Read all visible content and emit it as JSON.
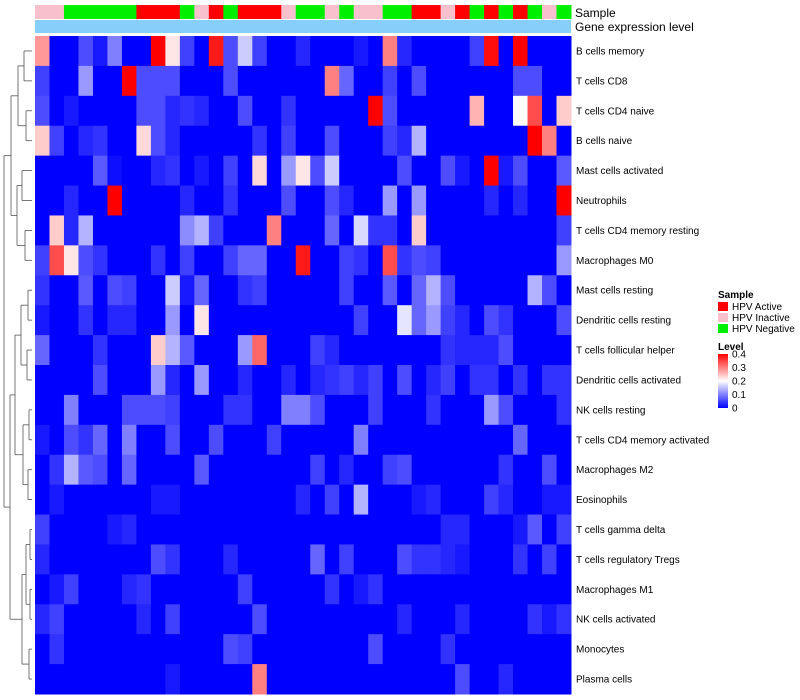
{
  "chart_data": {
    "type": "heatmap",
    "annotation_rows": [
      "Sample",
      "Gene expression level"
    ],
    "sample_groups": [
      "HPV Inactive",
      "HPV Inactive",
      "HPV Negative",
      "HPV Negative",
      "HPV Negative",
      "HPV Negative",
      "HPV Negative",
      "HPV Active",
      "HPV Active",
      "HPV Active",
      "HPV Negative",
      "HPV Inactive",
      "HPV Active",
      "HPV Negative",
      "HPV Active",
      "HPV Active",
      "HPV Active",
      "HPV Inactive",
      "HPV Negative",
      "HPV Negative",
      "HPV Inactive",
      "HPV Negative",
      "HPV Inactive",
      "HPV Inactive",
      "HPV Negative",
      "HPV Negative",
      "HPV Active",
      "HPV Active",
      "HPV Inactive",
      "HPV Active",
      "HPV Negative",
      "HPV Active",
      "HPV Negative",
      "HPV Active",
      "HPV Negative",
      "HPV Inactive",
      "HPV Negative"
    ],
    "rows": [
      "B cells memory",
      "T cells CD8",
      "T cells CD4 naive",
      "B cells naive",
      "Mast cells activated",
      "Neutrophils",
      "T cells CD4 memory resting",
      "Macrophages M0",
      "Mast cells resting",
      "Dendritic cells resting",
      "T cells follicular helper",
      "Dendritic cells activated",
      "NK cells resting",
      "T cells CD4 memory activated",
      "Macrophages M2",
      "Eosinophils",
      "T cells gamma delta",
      "T cells regulatory  Tregs",
      "Macrophages M1",
      "NK cells activated",
      "Monocytes",
      "Plasma cells"
    ],
    "values": [
      [
        0.28,
        0,
        0,
        0.06,
        0.02,
        0.1,
        0,
        0,
        0.4,
        0.22,
        0.05,
        0,
        0.38,
        0.06,
        0.16,
        0.05,
        0,
        0,
        0.03,
        0,
        0,
        0,
        0.02,
        0,
        0.3,
        0.03,
        0,
        0,
        0,
        0,
        0.05,
        0.39,
        0,
        0.4,
        0,
        0,
        0
      ],
      [
        0.05,
        0,
        0,
        0.12,
        0,
        0,
        0.4,
        0.06,
        0.06,
        0.06,
        0,
        0,
        0,
        0.06,
        0,
        0,
        0,
        0,
        0,
        0,
        0.3,
        0.08,
        0,
        0,
        0.05,
        0,
        0.06,
        0,
        0,
        0,
        0,
        0,
        0,
        0.06,
        0.06,
        0,
        0
      ],
      [
        0.06,
        0,
        0.02,
        0,
        0,
        0,
        0,
        0.06,
        0.06,
        0.03,
        0.04,
        0.03,
        0,
        0,
        0.06,
        0,
        0,
        0.04,
        0,
        0,
        0,
        0,
        0,
        0.4,
        0.06,
        0,
        0,
        0,
        0,
        0,
        0.26,
        0,
        0,
        0.2,
        0.34,
        0,
        0.24
      ],
      [
        0.24,
        0.05,
        0,
        0.03,
        0.04,
        0,
        0,
        0.23,
        0.06,
        0.03,
        0,
        0,
        0,
        0,
        0,
        0.04,
        0,
        0.05,
        0,
        0,
        0.06,
        0,
        0,
        0,
        0.05,
        0.03,
        0.14,
        0,
        0,
        0,
        0,
        0,
        0,
        0,
        0.4,
        0.3,
        0
      ],
      [
        0,
        0,
        0,
        0,
        0.07,
        0.01,
        0,
        0,
        0.03,
        0.04,
        0,
        0.02,
        0,
        0.05,
        0,
        0.23,
        0,
        0.12,
        0.22,
        0.06,
        0.16,
        0,
        0,
        0,
        0,
        0.06,
        0,
        0,
        0.06,
        0.02,
        0,
        0.4,
        0.02,
        0.06,
        0,
        0,
        0.07
      ],
      [
        0,
        0,
        0.03,
        0,
        0,
        0.4,
        0,
        0,
        0,
        0,
        0.03,
        0,
        0,
        0.04,
        0,
        0,
        0,
        0.06,
        0,
        0,
        0.06,
        0.03,
        0,
        0,
        0.12,
        0,
        0.12,
        0,
        0,
        0,
        0,
        0.03,
        0,
        0.03,
        0,
        0,
        0.4
      ],
      [
        0,
        0.24,
        0.03,
        0.14,
        0,
        0,
        0,
        0,
        0,
        0,
        0.11,
        0.14,
        0.05,
        0,
        0,
        0,
        0.3,
        0,
        0,
        0,
        0.08,
        0,
        0.17,
        0.04,
        0.04,
        0,
        0.24,
        0,
        0,
        0,
        0,
        0,
        0,
        0,
        0,
        0,
        0.05
      ],
      [
        0.05,
        0.34,
        0.22,
        0.06,
        0.04,
        0,
        0,
        0,
        0.04,
        0,
        0.05,
        0,
        0,
        0.05,
        0.08,
        0.08,
        0,
        0,
        0.38,
        0,
        0,
        0.05,
        0.04,
        0,
        0.34,
        0.04,
        0.06,
        0.05,
        0,
        0,
        0,
        0,
        0,
        0,
        0,
        0,
        0.12
      ],
      [
        0.04,
        0,
        0,
        0.07,
        0,
        0.06,
        0.05,
        0,
        0,
        0.16,
        0.02,
        0.08,
        0,
        0,
        0.04,
        0.05,
        0,
        0,
        0,
        0,
        0,
        0.05,
        0,
        0,
        0.07,
        0,
        0.08,
        0.14,
        0.06,
        0,
        0,
        0,
        0,
        0,
        0.14,
        0.06,
        0
      ],
      [
        0.02,
        0,
        0,
        0.04,
        0,
        0.03,
        0.03,
        0,
        0,
        0.12,
        0,
        0.22,
        0,
        0,
        0,
        0,
        0,
        0,
        0,
        0,
        0,
        0,
        0.05,
        0,
        0,
        0.18,
        0.08,
        0.12,
        0.05,
        0.03,
        0,
        0.06,
        0.04,
        0,
        0,
        0,
        0.06
      ],
      [
        0.08,
        0,
        0,
        0,
        0.04,
        0,
        0,
        0,
        0.24,
        0.14,
        0.07,
        0,
        0,
        0,
        0.12,
        0.32,
        0,
        0,
        0,
        0.05,
        0.03,
        0,
        0,
        0,
        0,
        0,
        0,
        0,
        0.04,
        0.03,
        0.03,
        0.03,
        0.06,
        0,
        0,
        0,
        0
      ],
      [
        0,
        0,
        0,
        0,
        0.06,
        0,
        0,
        0,
        0.12,
        0.03,
        0,
        0.12,
        0,
        0,
        0.03,
        0,
        0,
        0.03,
        0,
        0.03,
        0.04,
        0.05,
        0.03,
        0.05,
        0,
        0.06,
        0,
        0.03,
        0.05,
        0,
        0.04,
        0.04,
        0,
        0.04,
        0,
        0.04,
        0.04
      ],
      [
        0,
        0,
        0.1,
        0,
        0,
        0,
        0.06,
        0.06,
        0.06,
        0.05,
        0,
        0,
        0,
        0.04,
        0.04,
        0,
        0,
        0.1,
        0.1,
        0.06,
        0,
        0,
        0,
        0.05,
        0,
        0,
        0,
        0.04,
        0,
        0,
        0,
        0.12,
        0.06,
        0,
        0,
        0,
        0.04
      ],
      [
        0.02,
        0,
        0.06,
        0.04,
        0.08,
        0,
        0.1,
        0,
        0,
        0.06,
        0,
        0,
        0.06,
        0,
        0,
        0,
        0.05,
        0,
        0,
        0,
        0,
        0,
        0.1,
        0,
        0,
        0,
        0,
        0,
        0,
        0,
        0,
        0,
        0,
        0.08,
        0,
        0,
        0
      ],
      [
        0,
        0.04,
        0.14,
        0.07,
        0.06,
        0,
        0.08,
        0,
        0,
        0,
        0,
        0.07,
        0,
        0,
        0,
        0,
        0,
        0,
        0,
        0.05,
        0,
        0.03,
        0,
        0,
        0.05,
        0.06,
        0,
        0,
        0,
        0,
        0,
        0,
        0.04,
        0,
        0,
        0.06,
        0
      ],
      [
        0,
        0.02,
        0,
        0,
        0,
        0,
        0,
        0,
        0.02,
        0.02,
        0,
        0,
        0,
        0,
        0,
        0,
        0,
        0,
        0.03,
        0,
        0.05,
        0,
        0.14,
        0,
        0,
        0,
        0.02,
        0.03,
        0,
        0,
        0,
        0.05,
        0.03,
        0,
        0,
        0.02,
        0.02
      ],
      [
        0.05,
        0,
        0,
        0,
        0,
        0.02,
        0.03,
        0,
        0,
        0,
        0,
        0,
        0,
        0,
        0,
        0,
        0,
        0,
        0,
        0,
        0,
        0,
        0,
        0,
        0,
        0,
        0,
        0,
        0.03,
        0.03,
        0,
        0,
        0,
        0.02,
        0.07,
        0,
        0.05
      ],
      [
        0.03,
        0,
        0,
        0,
        0,
        0,
        0,
        0,
        0.06,
        0.04,
        0,
        0,
        0,
        0.03,
        0,
        0,
        0,
        0,
        0,
        0.08,
        0,
        0.05,
        0,
        0,
        0,
        0.06,
        0.04,
        0.04,
        0.03,
        0.02,
        0,
        0,
        0,
        0.04,
        0,
        0.05,
        0
      ],
      [
        0,
        0.02,
        0.05,
        0,
        0,
        0,
        0.03,
        0.04,
        0,
        0,
        0,
        0,
        0,
        0,
        0.05,
        0,
        0,
        0,
        0,
        0,
        0.04,
        0,
        0.02,
        0.04,
        0,
        0,
        0,
        0,
        0,
        0,
        0,
        0,
        0,
        0,
        0,
        0,
        0
      ],
      [
        0.03,
        0.05,
        0,
        0,
        0,
        0,
        0,
        0.03,
        0,
        0.05,
        0,
        0,
        0,
        0,
        0,
        0.06,
        0,
        0,
        0,
        0,
        0,
        0,
        0,
        0,
        0,
        0.03,
        0,
        0,
        0,
        0.03,
        0,
        0,
        0,
        0,
        0.04,
        0.02,
        0.04
      ],
      [
        0,
        0.04,
        0,
        0,
        0,
        0,
        0,
        0,
        0,
        0,
        0,
        0,
        0,
        0.06,
        0.05,
        0,
        0,
        0,
        0,
        0,
        0,
        0,
        0,
        0.06,
        0,
        0,
        0,
        0,
        0.04,
        0,
        0,
        0,
        0,
        0,
        0,
        0,
        0
      ],
      [
        0,
        0,
        0,
        0,
        0,
        0,
        0,
        0,
        0,
        0.02,
        0,
        0,
        0,
        0,
        0,
        0.3,
        0,
        0,
        0,
        0,
        0,
        0,
        0,
        0,
        0,
        0,
        0,
        0,
        0,
        0.06,
        0,
        0,
        0.03,
        0,
        0,
        0,
        0
      ]
    ],
    "legend": {
      "sample_title": "Sample",
      "sample_entries": [
        {
          "name": "HPV Active",
          "color": "#ff0000"
        },
        {
          "name": "HPV Inactive",
          "color": "#f8c0cc"
        },
        {
          "name": "HPV Negative",
          "color": "#00ee00"
        }
      ],
      "level_title": "Level",
      "level_ticks": [
        "0.4",
        "0.3",
        "0.2",
        "0.1",
        "0"
      ],
      "level_range": [
        0,
        0.4
      ]
    },
    "colors": {
      "low": "#0000ff",
      "mid": "#ffffff",
      "high": "#ff0000",
      "expression_bar": "#87cefa"
    }
  }
}
